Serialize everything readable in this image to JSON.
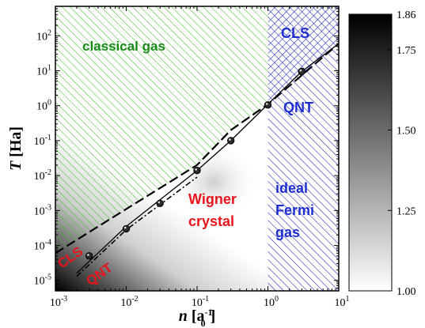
{
  "chart_data": {
    "type": "heatmap",
    "xlabel": {
      "symbol": "n",
      "unit_prefix": "[a",
      "unit_sub": "0",
      "unit_sup": "-1",
      "unit_suffix": "]"
    },
    "ylabel": {
      "symbol": "T",
      "unit": "[Ha]"
    },
    "x_scale": "log",
    "y_scale": "log",
    "xlim": [
      0.001,
      10
    ],
    "ylim": [
      5e-06,
      700
    ],
    "x_ticks": [
      {
        "value": 0.001,
        "base": "10",
        "exp": "-3"
      },
      {
        "value": 0.01,
        "base": "10",
        "exp": "-2"
      },
      {
        "value": 0.1,
        "base": "10",
        "exp": "-1"
      },
      {
        "value": 1,
        "base": "10",
        "exp": "0"
      },
      {
        "value": 10,
        "base": "10",
        "exp": "1"
      }
    ],
    "y_ticks": [
      {
        "value": 1e-05,
        "base": "10",
        "exp": "-5"
      },
      {
        "value": 0.0001,
        "base": "10",
        "exp": "-4"
      },
      {
        "value": 0.001,
        "base": "10",
        "exp": "-3"
      },
      {
        "value": 0.01,
        "base": "10",
        "exp": "-2"
      },
      {
        "value": 0.1,
        "base": "10",
        "exp": "-1"
      },
      {
        "value": 1,
        "base": "10",
        "exp": "0"
      },
      {
        "value": 10,
        "base": "10",
        "exp": "1"
      },
      {
        "value": 100,
        "base": "10",
        "exp": "2"
      }
    ],
    "colorbar": {
      "range": [
        1.0,
        1.86
      ],
      "colormap": [
        "#ffffff",
        "#000000"
      ],
      "tick_labels": [
        {
          "value": 1.86,
          "label": "1.86"
        },
        {
          "value": 1.75,
          "label": "1.75"
        },
        {
          "value": 1.5,
          "label": "1.50"
        },
        {
          "value": 1.25,
          "label": "1.25"
        },
        {
          "value": 1.0,
          "label": "1.00"
        }
      ]
    },
    "boundary_dashed": [
      [
        0.001,
        6e-05
      ],
      [
        0.01,
        0.0011
      ],
      [
        0.1,
        0.02
      ],
      [
        0.3,
        0.2
      ],
      [
        1,
        1.1
      ],
      [
        10,
        60
      ]
    ],
    "line_solid": [
      [
        0.002,
        1.6e-05
      ],
      [
        0.01,
        0.00035
      ],
      [
        0.1,
        0.014
      ],
      [
        0.3,
        0.1
      ],
      [
        1,
        1.1
      ],
      [
        3,
        9.5
      ],
      [
        10,
        60
      ]
    ],
    "line_dashdot": [
      [
        0.002,
        1.3e-05
      ],
      [
        0.01,
        0.00028
      ],
      [
        0.1,
        0.009
      ]
    ],
    "markers": [
      [
        0.003,
        5e-05
      ],
      [
        0.01,
        0.0003
      ],
      [
        0.03,
        0.0016
      ],
      [
        0.1,
        0.014
      ],
      [
        0.3,
        0.1
      ],
      [
        1,
        1.05
      ],
      [
        3,
        9.5
      ]
    ],
    "regions": {
      "classical_gas_color": "#3fbf2a",
      "ideal_fermi_color": "#2a2fb8",
      "classical_gas_boundary_x": 1
    },
    "annotations": [
      {
        "text": "classical gas",
        "color": "#1a8a1a"
      },
      {
        "text": "CLS",
        "color": "#1f2fcf"
      },
      {
        "text": "QNT",
        "color": "#1f2fcf"
      },
      {
        "text": "ideal",
        "color": "#1f2fcf"
      },
      {
        "text": "Fermi",
        "color": "#1f2fcf"
      },
      {
        "text": "gas",
        "color": "#1f2fcf"
      },
      {
        "text": "Wigner",
        "color": "#e8141b"
      },
      {
        "text": "crystal",
        "color": "#e8141b"
      },
      {
        "text": "CLS",
        "color": "#e8141b"
      },
      {
        "text": "QNT",
        "color": "#e8141b"
      }
    ]
  }
}
